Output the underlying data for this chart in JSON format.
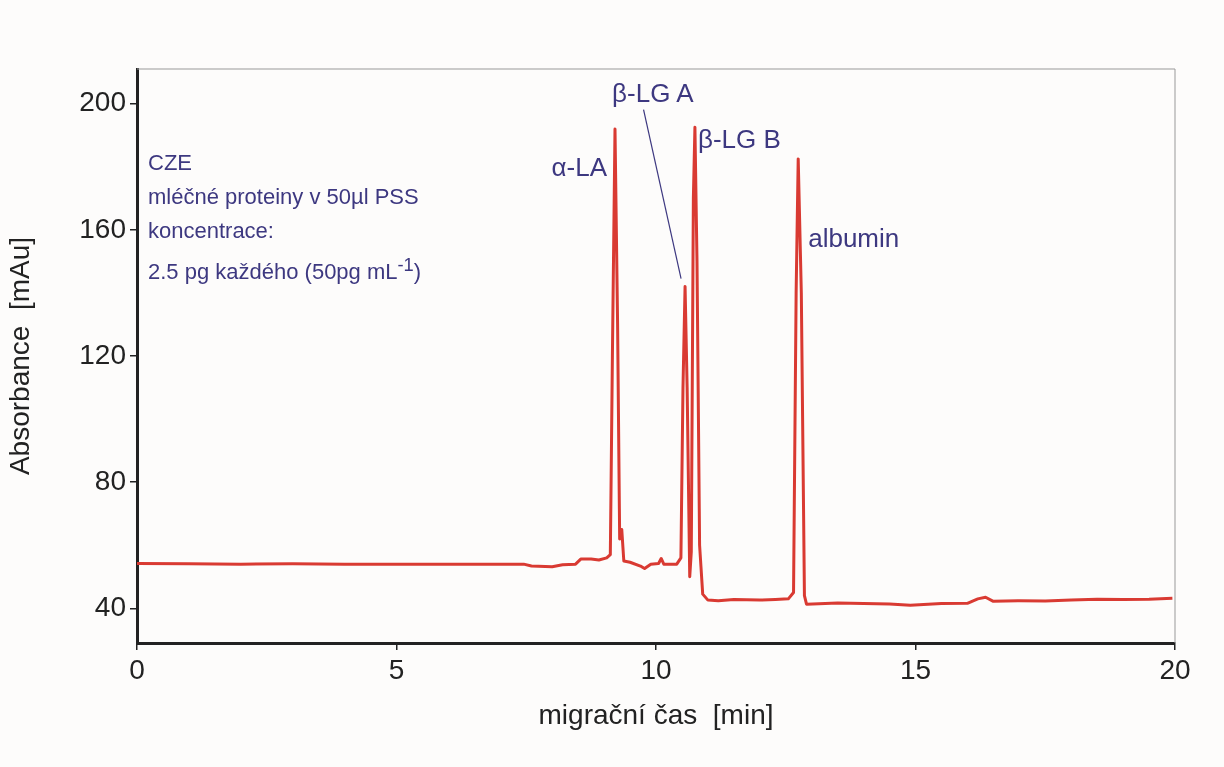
{
  "chart_data": {
    "type": "line",
    "xlabel": "migrační čas  [min]",
    "ylabel": "Absorbance  [mAu]",
    "x": [
      0,
      1,
      2,
      3,
      4,
      5,
      6,
      7,
      7.45,
      7.6,
      8.0,
      8.2,
      8.45,
      8.55,
      8.75,
      8.9,
      9.05,
      9.12,
      9.16,
      9.21,
      9.26,
      9.3,
      9.34,
      9.38,
      9.5,
      9.7,
      9.78,
      9.9,
      10.05,
      10.1,
      10.15,
      10.4,
      10.48,
      10.52,
      10.56,
      10.6,
      10.65,
      10.68,
      10.72,
      10.75,
      10.79,
      10.84,
      10.9,
      11.0,
      11.2,
      11.5,
      12.0,
      12.3,
      12.55,
      12.65,
      12.7,
      12.74,
      12.8,
      12.86,
      12.9,
      13.5,
      14.0,
      14.5,
      14.9,
      15.5,
      16.0,
      16.2,
      16.35,
      16.5,
      17.0,
      17.5,
      18.0,
      18.5,
      19.0,
      19.5,
      19.95
    ],
    "values": [
      54.2,
      54.1,
      54.0,
      54.1,
      54.0,
      54.0,
      54.0,
      54.0,
      54.0,
      53.4,
      53.2,
      53.8,
      54.0,
      55.6,
      55.6,
      55.3,
      56.0,
      57,
      120,
      192,
      130,
      62,
      65,
      55,
      54.6,
      53.4,
      52.6,
      54.0,
      54.2,
      55.8,
      54.0,
      54.0,
      56,
      110,
      142,
      110,
      50,
      58,
      170,
      192.5,
      150,
      60,
      44.5,
      42.6,
      42.4,
      42.8,
      42.6,
      42.8,
      43.0,
      45,
      140,
      182.5,
      140,
      44,
      41.3,
      41.7,
      41.5,
      41.4,
      41.0,
      41.5,
      41.6,
      43.0,
      43.5,
      42.2,
      42.4,
      42.3,
      42.6,
      42.9,
      42.8,
      42.9,
      43.2
    ],
    "color": "#d93a32",
    "xlim": [
      0,
      20
    ],
    "ylim": [
      29,
      211
    ],
    "xticks": [
      0,
      5,
      10,
      15,
      20
    ],
    "yticks": [
      40,
      80,
      120,
      160,
      200
    ],
    "grid": false,
    "legend": false,
    "marker": "none",
    "line_style": "solid",
    "annotations": [
      "CZE",
      "mléčné proteiny v 50µl PSS",
      "koncentrace:",
      "2.5 pg každého (50pg mL$^{-1}$)",
      {
        "text": "α-LA",
        "x": 9.21,
        "y": 192
      },
      {
        "text": "β-LG A",
        "x": 10.56,
        "y": 142
      },
      {
        "text": "β-LG B",
        "x": 10.75,
        "y": 192.5
      },
      {
        "text": "albumin",
        "x": 12.74,
        "y": 182.5
      }
    ]
  }
}
